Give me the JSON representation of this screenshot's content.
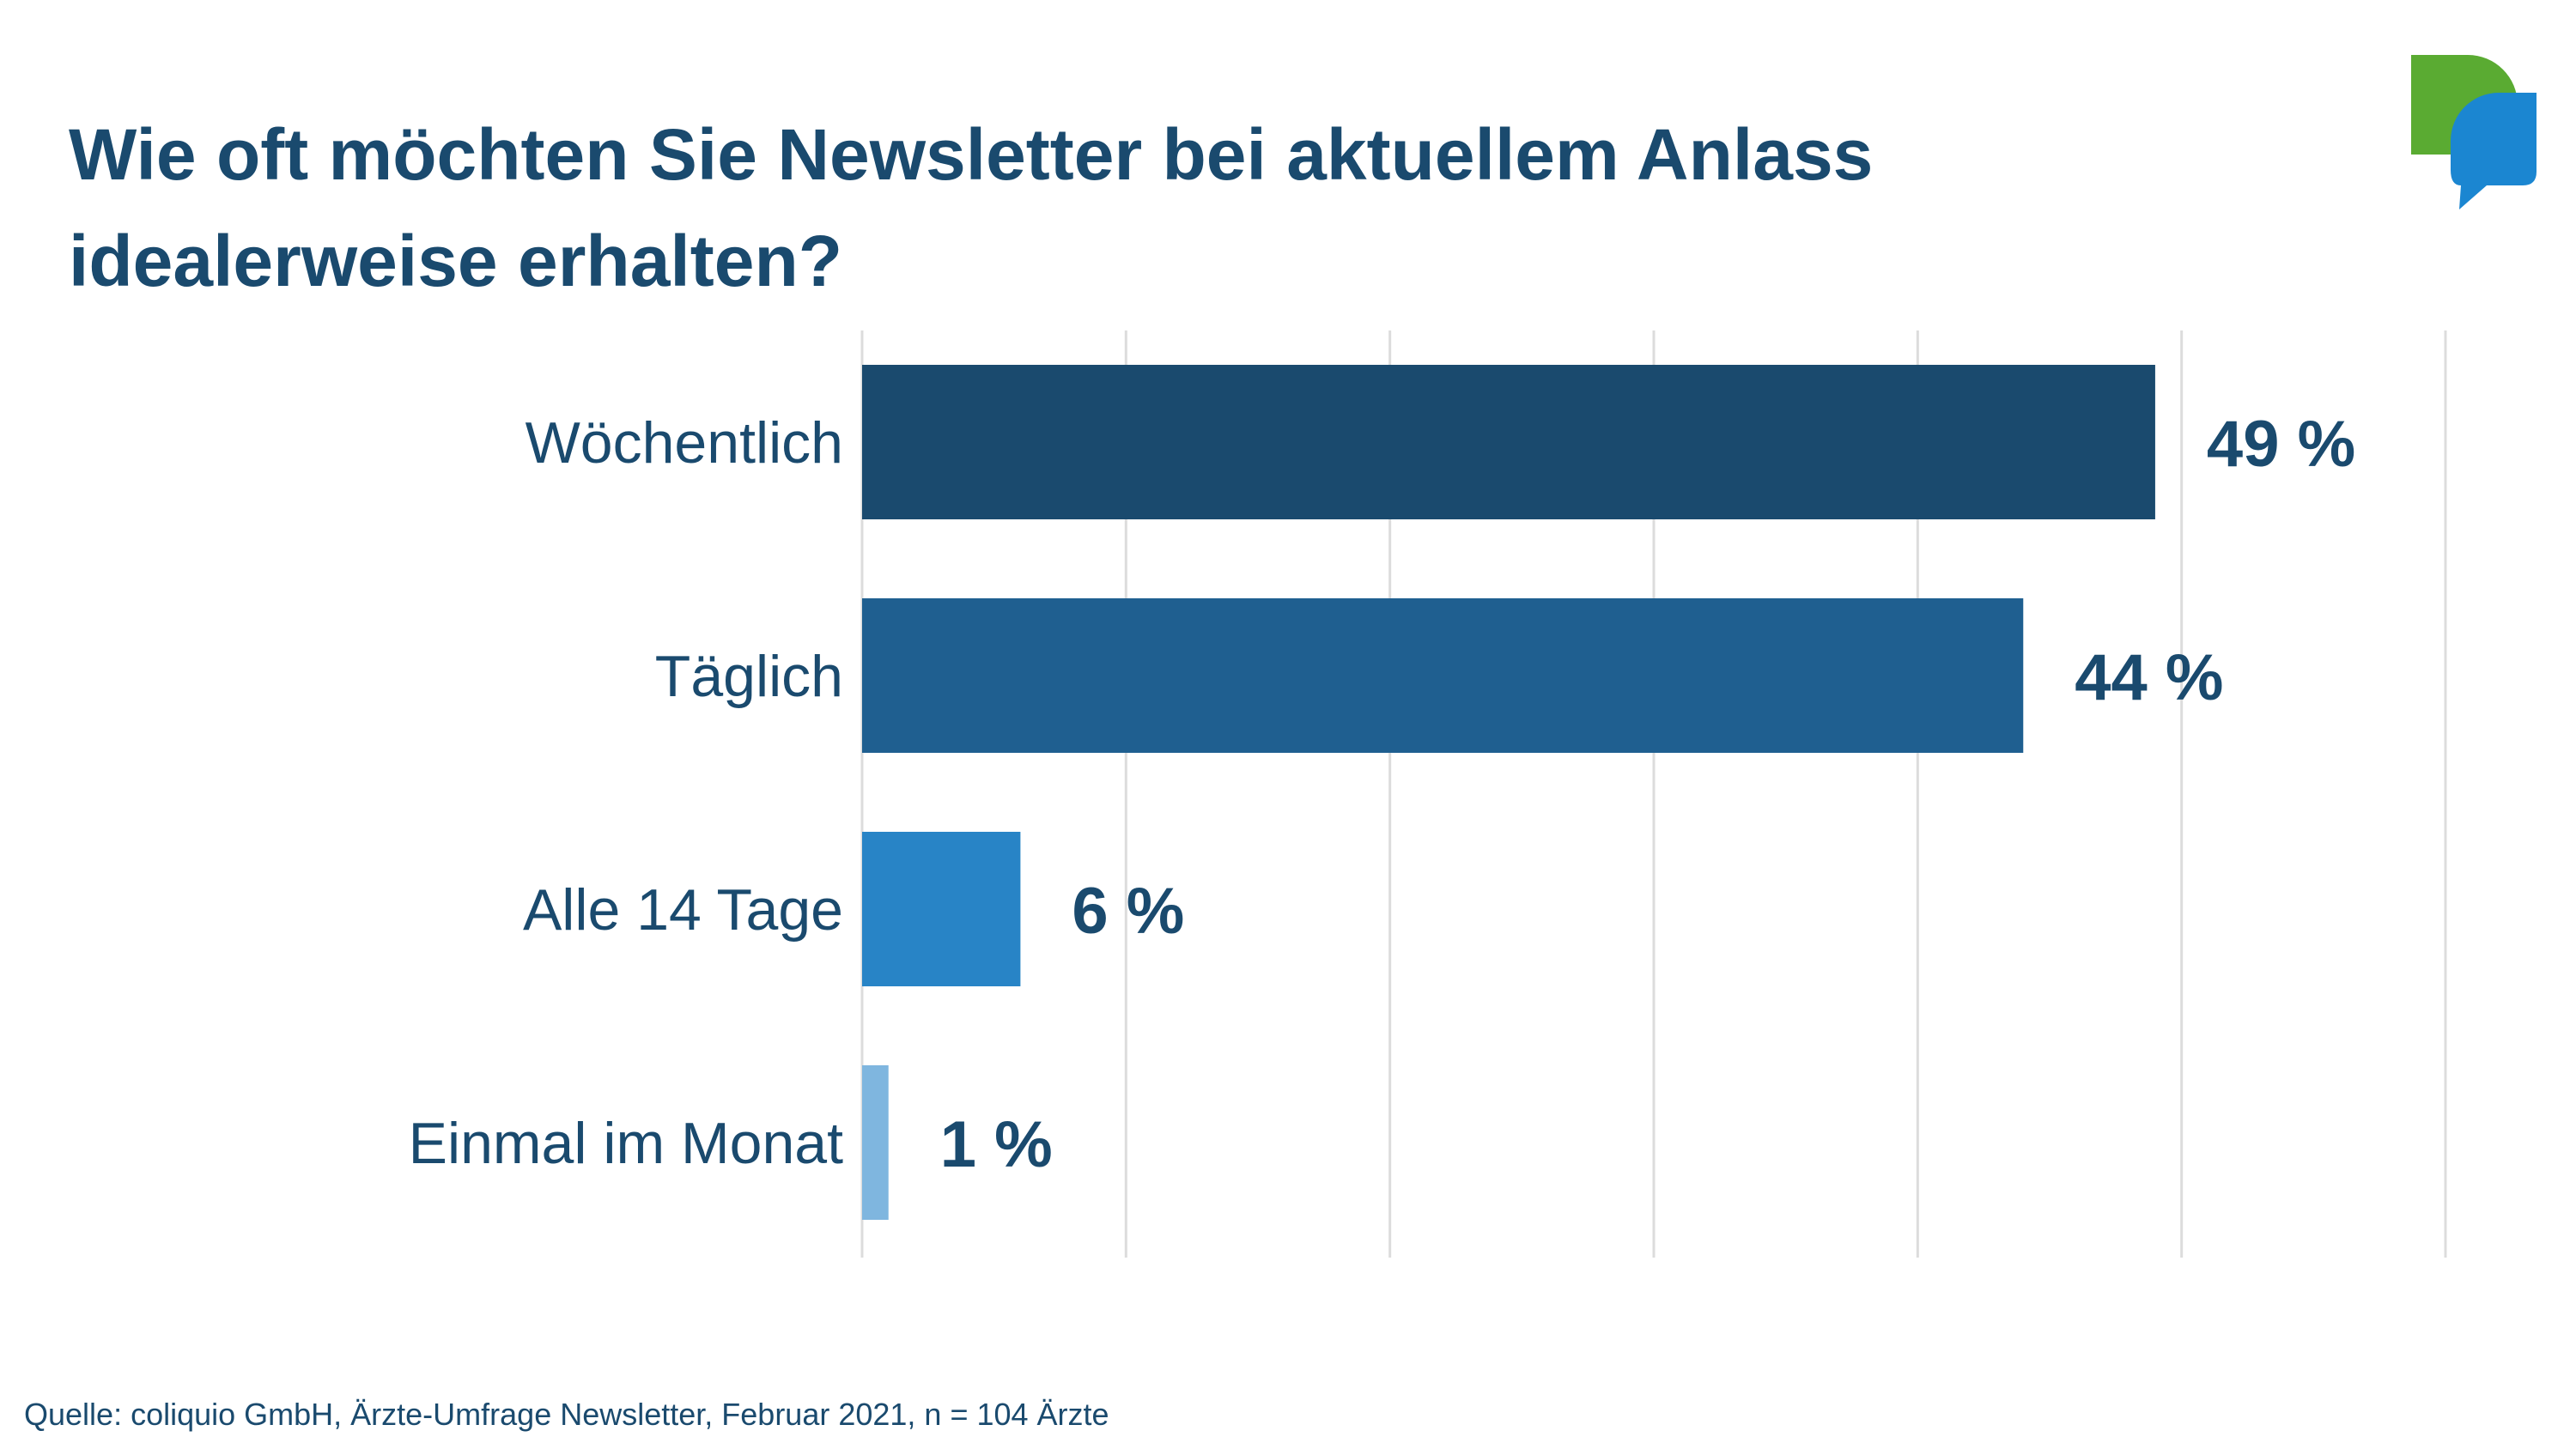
{
  "title": "Wie oft möchten Sie Newsletter bei aktuellem Anlass idealerweise erhalten?",
  "source": "Quelle: coliquio GmbH, Ärzte-Umfrage Newsletter, Februar 2021, n = 104 Ärzte",
  "logo": {
    "icon": "speech-bubbles-logo",
    "colors": [
      "#5aab32",
      "#1b86d1"
    ]
  },
  "chart_data": {
    "type": "bar",
    "orientation": "horizontal",
    "title": "Wie oft möchten Sie Newsletter bei aktuellem Anlass idealerweise erhalten?",
    "xlabel": "",
    "ylabel": "",
    "categories": [
      "Wöchentlich",
      "Täglich",
      "Alle 14 Tage",
      "Einmal im Monat"
    ],
    "values": [
      49,
      44,
      6,
      1
    ],
    "value_labels": [
      "49 %",
      "44 %",
      "6 %",
      "1 %"
    ],
    "bar_colors": [
      "#1a4a6e",
      "#1f5f90",
      "#2884c6",
      "#7fb6df"
    ],
    "xlim": [
      0,
      60
    ],
    "grid": true,
    "legend": "none"
  }
}
